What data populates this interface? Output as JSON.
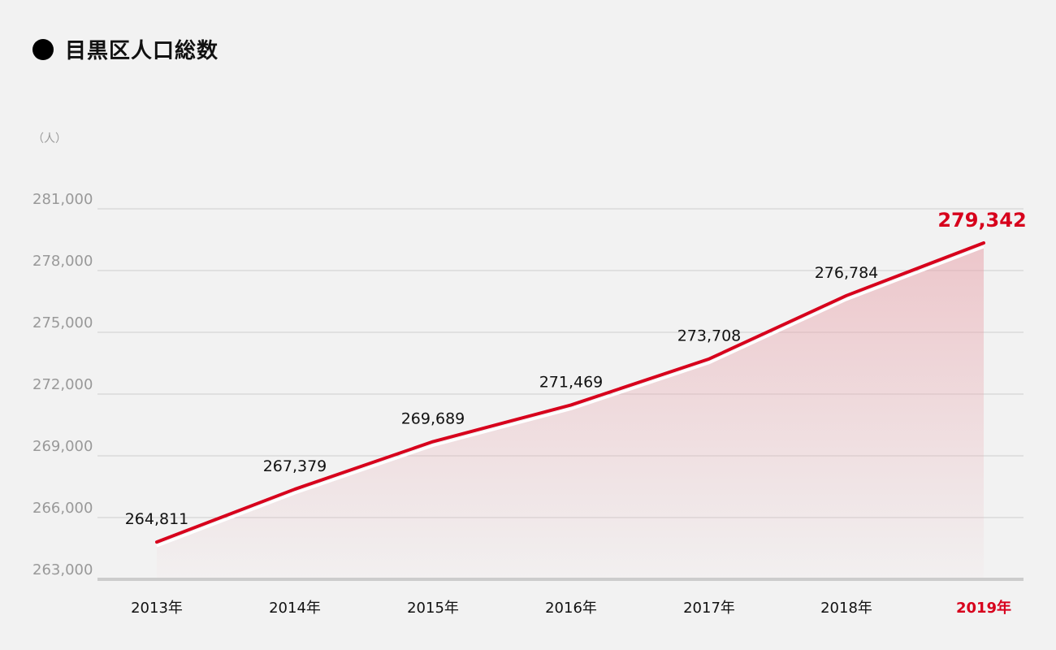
{
  "chart_data": {
    "type": "area",
    "title": "目黒区人口総数",
    "unit_label": "（人）",
    "categories": [
      "2013年",
      "2014年",
      "2015年",
      "2016年",
      "2017年",
      "2018年",
      "2019年"
    ],
    "values": [
      264811,
      267379,
      269689,
      271469,
      273708,
      276784,
      279342
    ],
    "value_labels": [
      "264,811",
      "267,379",
      "269,689",
      "271,469",
      "273,708",
      "276,784",
      "279,342"
    ],
    "y_ticks": [
      263000,
      266000,
      269000,
      272000,
      275000,
      278000,
      281000
    ],
    "y_tick_labels": [
      "263,000",
      "266,000",
      "269,000",
      "272,000",
      "275,000",
      "278,000",
      "281,000"
    ],
    "ylim": [
      263000,
      281000
    ],
    "grid": true,
    "highlight_index": 6,
    "colors": {
      "line": "#d7001c",
      "fill": "#e8a3ab",
      "highlight": "#d7001c",
      "grid": "#cfcfcf",
      "axis_text": "#999999",
      "label_text": "#111111",
      "baseline": "#cccccc"
    }
  }
}
